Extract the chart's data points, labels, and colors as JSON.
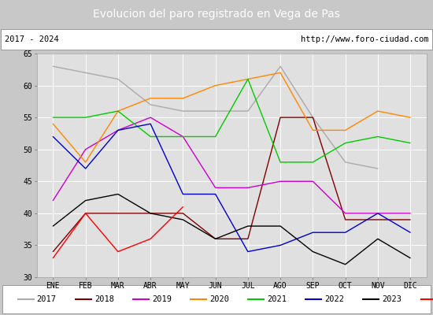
{
  "title": "Evolucion del paro registrado en Vega de Pas",
  "subtitle_left": "2017 - 2024",
  "subtitle_right": "http://www.foro-ciudad.com",
  "months": [
    "ENE",
    "FEB",
    "MAR",
    "ABR",
    "MAY",
    "JUN",
    "JUL",
    "AGO",
    "SEP",
    "OCT",
    "NOV",
    "DIC"
  ],
  "series": {
    "2017": {
      "color": "#aaaaaa",
      "data": [
        63,
        62,
        61,
        57,
        56,
        56,
        56,
        63,
        55,
        48,
        47,
        null
      ]
    },
    "2018": {
      "color": "#800000",
      "data": [
        34,
        40,
        40,
        40,
        40,
        36,
        36,
        55,
        55,
        39,
        39,
        39
      ]
    },
    "2019": {
      "color": "#cc00cc",
      "data": [
        42,
        50,
        53,
        55,
        52,
        44,
        44,
        45,
        45,
        40,
        40,
        40
      ]
    },
    "2020": {
      "color": "#ff8800",
      "data": [
        54,
        48,
        56,
        58,
        58,
        60,
        61,
        62,
        53,
        53,
        56,
        55
      ]
    },
    "2021": {
      "color": "#00cc00",
      "data": [
        55,
        55,
        56,
        52,
        52,
        52,
        61,
        48,
        48,
        51,
        52,
        51
      ]
    },
    "2022": {
      "color": "#0000cc",
      "data": [
        52,
        47,
        53,
        54,
        43,
        43,
        34,
        35,
        37,
        37,
        40,
        37
      ]
    },
    "2023": {
      "color": "#000000",
      "data": [
        38,
        42,
        43,
        40,
        39,
        36,
        38,
        38,
        34,
        32,
        36,
        33
      ]
    },
    "2024": {
      "color": "#ff0000",
      "data": [
        33,
        40,
        34,
        36,
        41,
        null,
        null,
        null,
        null,
        null,
        null,
        null
      ]
    }
  },
  "ylim": [
    30,
    65
  ],
  "yticks": [
    30,
    35,
    40,
    45,
    50,
    55,
    60,
    65
  ],
  "bg_color": "#c8c8c8",
  "plot_bg": "#e0e0e0",
  "title_bg": "#4477bb",
  "title_color": "white",
  "title_fontsize": 10,
  "header_bg": "#ffffff",
  "legend_bg": "#ffffff",
  "subtitle_fontsize": 7.5,
  "tick_fontsize": 7,
  "legend_fontsize": 7.5
}
